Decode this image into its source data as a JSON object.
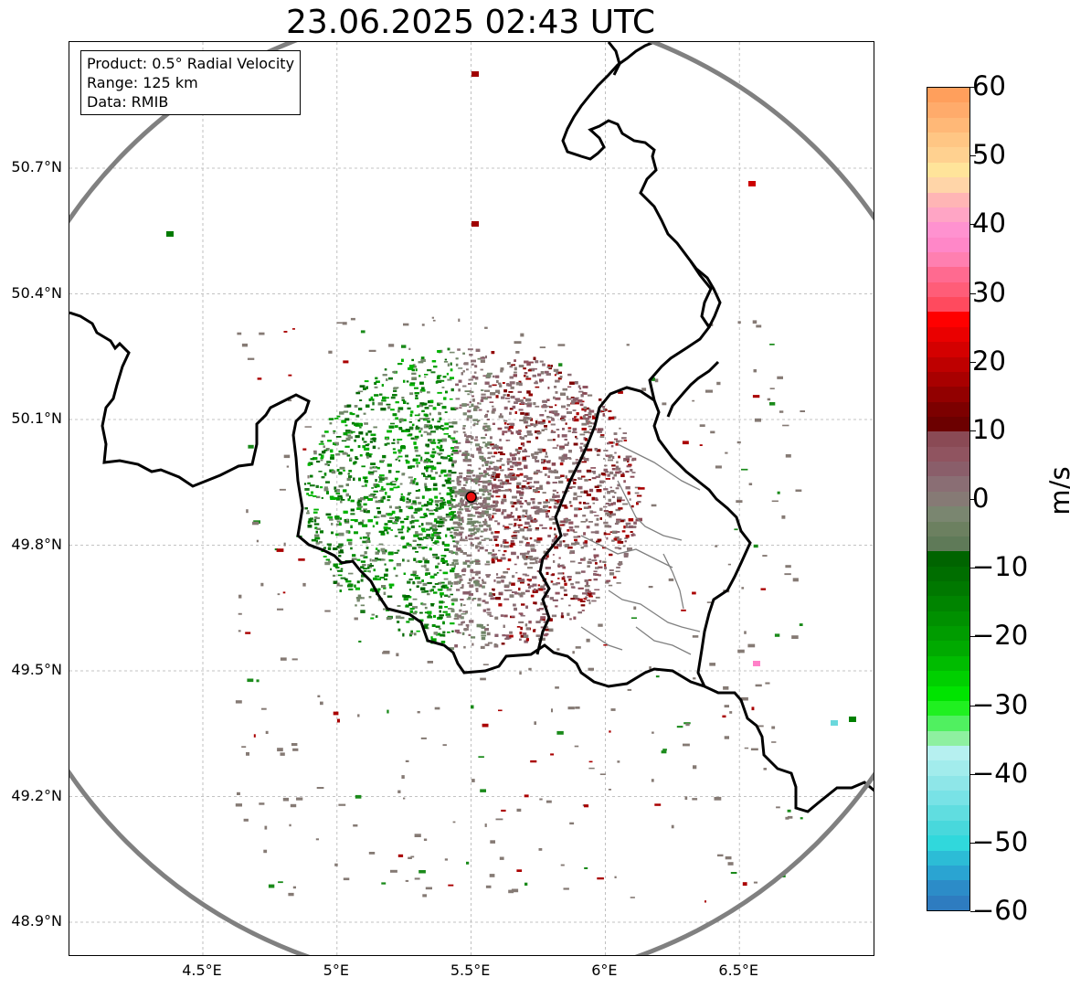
{
  "title": "23.06.2025 02:43 UTC",
  "info": {
    "product": "Product: 0.5° Radial Velocity",
    "range": "Range: 125 km",
    "data": "Data: RMIB"
  },
  "map": {
    "lon_range": [
      4.0,
      7.0
    ],
    "lat_range": [
      48.8,
      51.0
    ],
    "radar_site": {
      "lon": 5.5,
      "lat": 49.915
    },
    "lat_ticks": [
      "50.7°N",
      "50.4°N",
      "50.1°N",
      "49.8°N",
      "49.5°N",
      "49.2°N",
      "48.9°N"
    ],
    "lat_values": [
      50.7,
      50.4,
      50.1,
      49.8,
      49.5,
      49.2,
      48.9
    ],
    "lon_ticks": [
      "4.5°E",
      "5°E",
      "5.5°E",
      "6°E",
      "6.5°E"
    ],
    "lon_values": [
      4.5,
      5.0,
      5.5,
      6.0,
      6.5
    ],
    "gridlines": true,
    "range_ring_color": "#808080"
  },
  "colorbar": {
    "label": "m/s",
    "min": -60,
    "max": 60,
    "ticks": [
      "60",
      "50",
      "40",
      "30",
      "20",
      "10",
      "0",
      "−10",
      "−20",
      "−30",
      "−40",
      "−50",
      "−60"
    ],
    "tick_values": [
      60,
      50,
      40,
      30,
      20,
      10,
      0,
      -10,
      -20,
      -30,
      -40,
      -50,
      -60
    ],
    "colors_top_to_bottom": [
      "#ff9f5c",
      "#ffab6b",
      "#ffb877",
      "#ffc684",
      "#ffd190",
      "#ffe49a",
      "#ffd5a8",
      "#ffb5b5",
      "#ffa5c5",
      "#ff92d0",
      "#ff87c8",
      "#ff7fb0",
      "#ff6a90",
      "#ff5d78",
      "#ff4a5e",
      "#ff0000",
      "#ea0000",
      "#d40000",
      "#be0000",
      "#a80000",
      "#920000",
      "#7c0000",
      "#6c0000",
      "#8a4a55",
      "#905460",
      "#8a5e6a",
      "#8a6e74",
      "#867a75",
      "#7a8670",
      "#6c8060",
      "#5f7a58",
      "#006400",
      "#006e00",
      "#007800",
      "#008400",
      "#009000",
      "#009c00",
      "#00aa00",
      "#00bc00",
      "#00d000",
      "#00e400",
      "#20f020",
      "#50f060",
      "#8ef0a0",
      "#b6f0f0",
      "#a2ecec",
      "#8ee6e8",
      "#78e2e6",
      "#60dde0",
      "#48d8dc",
      "#30d8dc",
      "#2cbcd6",
      "#2aa4d2",
      "#2c8cc8",
      "#2e7cc0"
    ]
  }
}
